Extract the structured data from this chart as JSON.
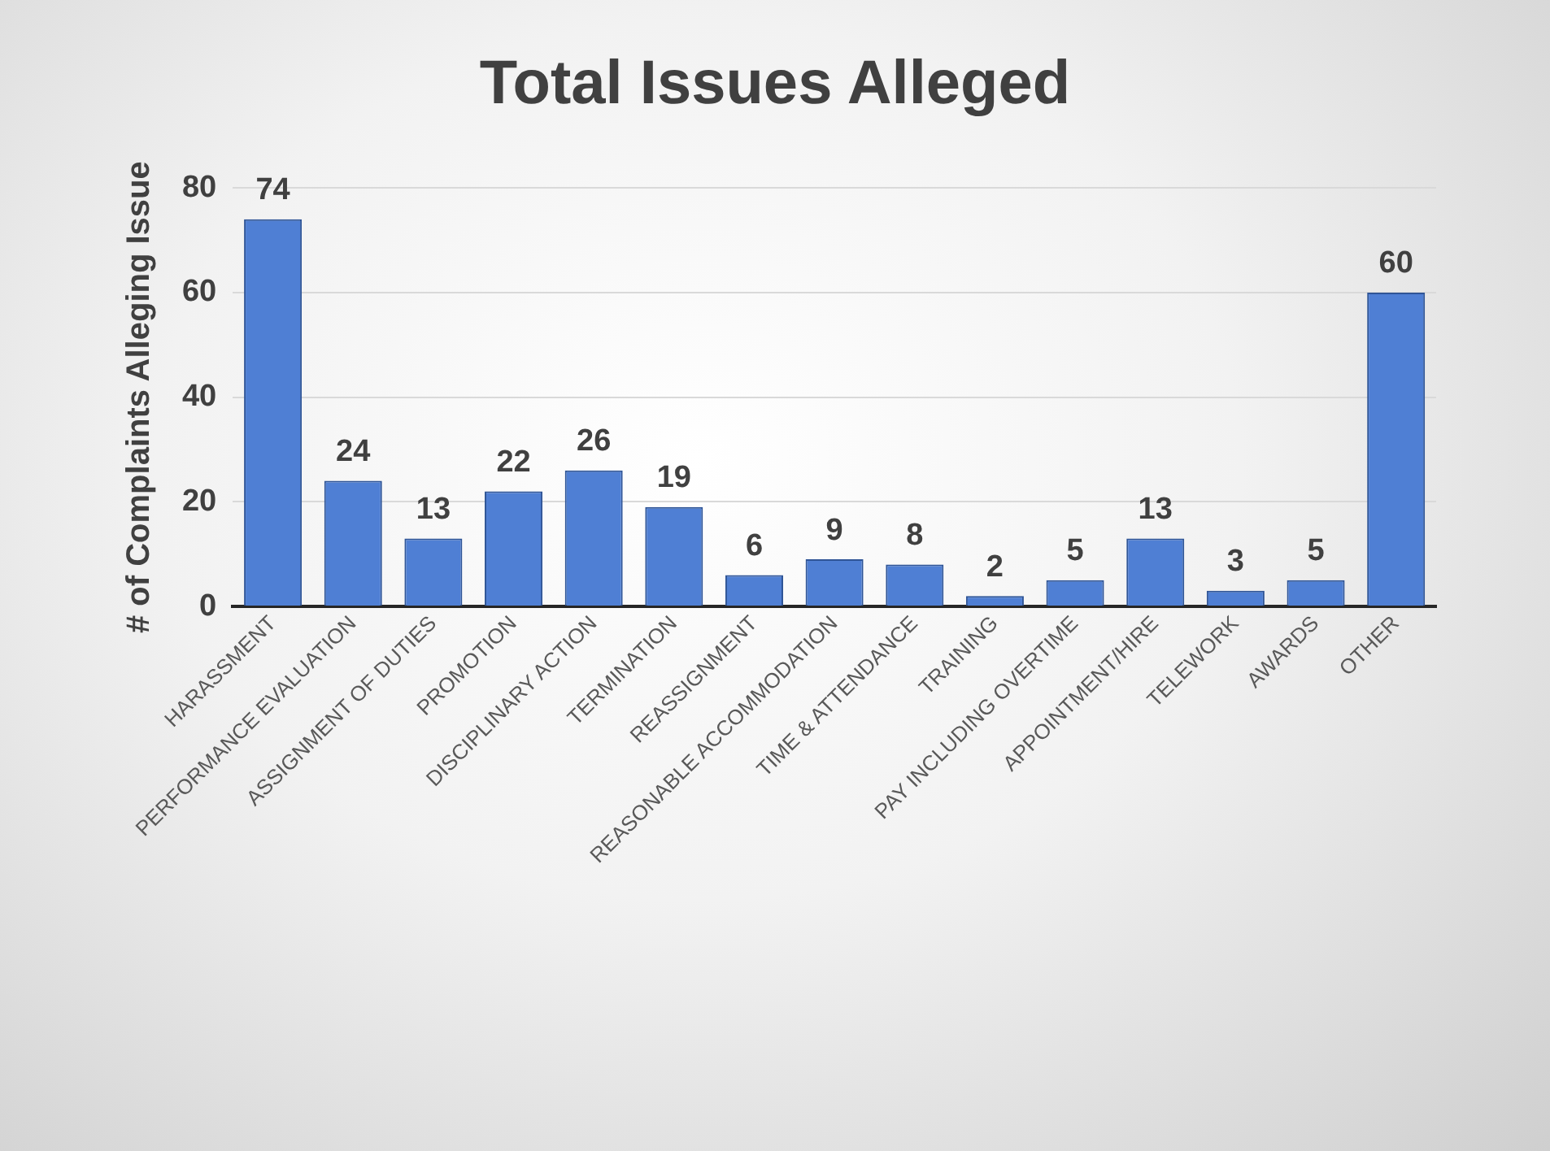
{
  "chart_data": {
    "type": "bar",
    "title": "Total Issues Alleged",
    "ylabel": "# of Complaints Alleging Issue",
    "categories": [
      "HARASSMENT",
      "PERFORMANCE EVALUATION",
      "ASSIGNMENT OF DUTIES",
      "PROMOTION",
      "DISCIPLINARY ACTION",
      "TERMINATION",
      "REASSIGNMENT",
      "REASONABLE ACCOMMODATION",
      "TIME & ATTENDANCE",
      "TRAINING",
      "PAY INCLUDING OVERTIME",
      "APPOINTMENT/HIRE",
      "TELEWORK",
      "AWARDS",
      "OTHER"
    ],
    "values": [
      74,
      24,
      13,
      22,
      26,
      19,
      6,
      9,
      8,
      2,
      5,
      13,
      3,
      5,
      60
    ],
    "color": "#4f7fd4",
    "ylim": [
      0,
      80
    ],
    "yticks": [
      0,
      20,
      40,
      60,
      80
    ],
    "grid": "y",
    "data_labels": true
  }
}
